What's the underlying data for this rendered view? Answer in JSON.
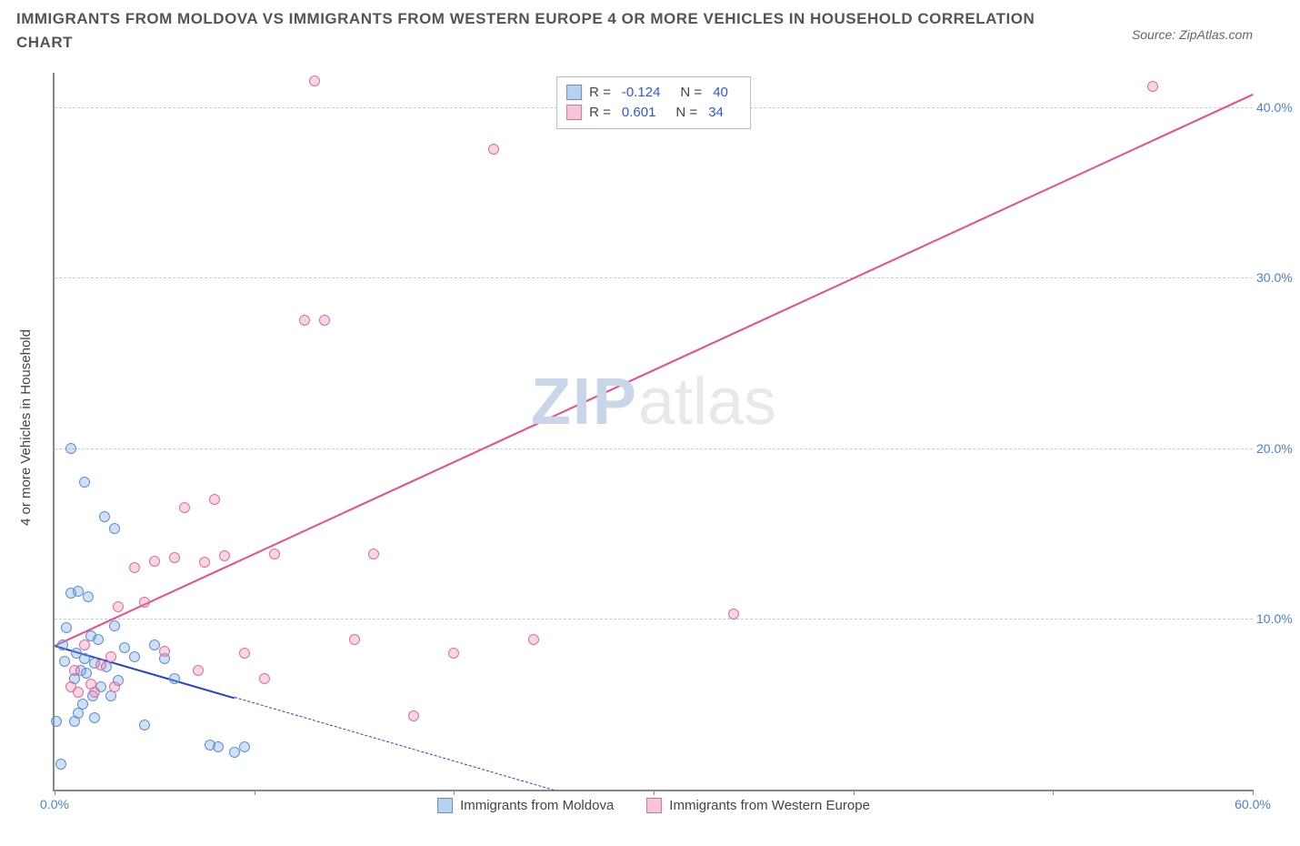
{
  "title": "IMMIGRANTS FROM MOLDOVA VS IMMIGRANTS FROM WESTERN EUROPE 4 OR MORE VEHICLES IN HOUSEHOLD CORRELATION CHART",
  "source_label": "Source: ZipAtlas.com",
  "watermark": {
    "part1": "ZIP",
    "part2": "atlas"
  },
  "chart": {
    "type": "scatter",
    "background_color": "#ffffff",
    "grid_color": "#cccccc",
    "axis_color": "#888888",
    "tick_color": "#4a7fd6",
    "x_min": 0,
    "x_max": 60,
    "y_min": 0,
    "y_max": 42,
    "y_ticks": [
      10,
      20,
      30,
      40
    ],
    "y_tick_labels": [
      "10.0%",
      "20.0%",
      "30.0%",
      "40.0%"
    ],
    "x_tick_positions": [
      0,
      10,
      20,
      30,
      40,
      50,
      60
    ],
    "x_first_label": "0.0%",
    "x_last_label": "60.0%",
    "ylabel": "4 or more Vehicles in Household",
    "marker_radius": 6,
    "marker_border_width": 1,
    "series": [
      {
        "name": "Immigrants from Moldova",
        "fill": "rgba(120,165,230,0.35)",
        "stroke": "#5d8fd6",
        "legend_swatch_fill": "#b9d1f0",
        "legend_swatch_stroke": "#5d8fd6",
        "R": "-0.124",
        "N": "40",
        "points": [
          [
            0.4,
            8.5
          ],
          [
            0.5,
            7.5
          ],
          [
            0.6,
            9.5
          ],
          [
            0.8,
            11.5
          ],
          [
            0.8,
            20.0
          ],
          [
            1.0,
            6.5
          ],
          [
            1.0,
            4.0
          ],
          [
            1.1,
            8.0
          ],
          [
            1.2,
            11.6
          ],
          [
            1.2,
            4.5
          ],
          [
            1.3,
            7.0
          ],
          [
            1.4,
            5.0
          ],
          [
            1.5,
            18.0
          ],
          [
            1.5,
            7.7
          ],
          [
            1.6,
            6.8
          ],
          [
            1.7,
            11.3
          ],
          [
            1.8,
            9.0
          ],
          [
            1.9,
            5.5
          ],
          [
            2.0,
            7.4
          ],
          [
            2.0,
            4.2
          ],
          [
            2.2,
            8.8
          ],
          [
            2.3,
            6.0
          ],
          [
            2.5,
            16.0
          ],
          [
            2.6,
            7.2
          ],
          [
            2.8,
            5.5
          ],
          [
            3.0,
            15.3
          ],
          [
            3.0,
            9.6
          ],
          [
            3.2,
            6.4
          ],
          [
            3.5,
            8.3
          ],
          [
            4.0,
            7.8
          ],
          [
            4.5,
            3.8
          ],
          [
            5.0,
            8.5
          ],
          [
            5.5,
            7.7
          ],
          [
            6.0,
            6.5
          ],
          [
            7.8,
            2.6
          ],
          [
            8.2,
            2.5
          ],
          [
            9.0,
            2.2
          ],
          [
            9.5,
            2.5
          ],
          [
            0.3,
            1.5
          ],
          [
            0.1,
            4.0
          ]
        ],
        "trend": {
          "x1": 0,
          "y1": 8.5,
          "x2": 25,
          "y2": 0,
          "color": "#2244cc",
          "solid_fraction": 0.36
        }
      },
      {
        "name": "Immigrants from Western Europe",
        "fill": "rgba(235,120,160,0.30)",
        "stroke": "#e06c9f",
        "legend_swatch_fill": "#f5c7d8",
        "legend_swatch_stroke": "#e06c9f",
        "R": "0.601",
        "N": "34",
        "points": [
          [
            0.8,
            6.0
          ],
          [
            1.0,
            7.0
          ],
          [
            1.2,
            5.7
          ],
          [
            1.5,
            8.5
          ],
          [
            1.8,
            6.2
          ],
          [
            2.0,
            5.7
          ],
          [
            2.3,
            7.3
          ],
          [
            2.8,
            7.8
          ],
          [
            3.0,
            6.0
          ],
          [
            3.2,
            10.7
          ],
          [
            4.0,
            13.0
          ],
          [
            4.5,
            11.0
          ],
          [
            5.0,
            13.4
          ],
          [
            5.5,
            8.1
          ],
          [
            6.0,
            13.6
          ],
          [
            6.5,
            16.5
          ],
          [
            7.5,
            13.3
          ],
          [
            8.0,
            17.0
          ],
          [
            8.5,
            13.7
          ],
          [
            9.5,
            8.0
          ],
          [
            10.5,
            6.5
          ],
          [
            11.0,
            13.8
          ],
          [
            12.5,
            27.5
          ],
          [
            13.5,
            27.5
          ],
          [
            13.0,
            41.5
          ],
          [
            15.0,
            8.8
          ],
          [
            16.0,
            13.8
          ],
          [
            18.0,
            4.3
          ],
          [
            20.0,
            8.0
          ],
          [
            22.0,
            37.5
          ],
          [
            24.0,
            8.8
          ],
          [
            34.0,
            10.3
          ],
          [
            55.0,
            41.2
          ],
          [
            7.2,
            7.0
          ]
        ],
        "trend": {
          "x1": 0,
          "y1": 8.5,
          "x2": 60,
          "y2": 40.8,
          "color": "#e94b86",
          "solid_fraction": 1.0
        }
      }
    ]
  },
  "legend_top": {
    "row1_r_label": "R =",
    "row1_n_label": "N =",
    "row2_r_label": "R =",
    "row2_n_label": "N ="
  },
  "legend_bottom": [
    "Immigrants from Moldova",
    "Immigrants from Western Europe"
  ]
}
